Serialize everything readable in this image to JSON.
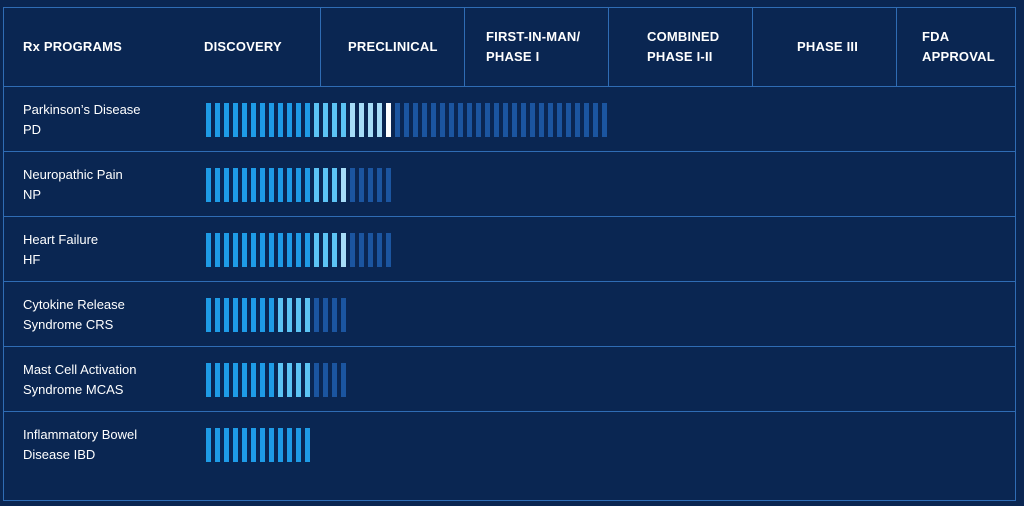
{
  "header": {
    "columns": [
      "Rx PROGRAMS",
      "DISCOVERY",
      "PRECLINICAL",
      "FIRST-IN-MAN/\nPHASE I",
      "COMBINED\nPHASE I-II",
      "PHASE III",
      "FDA\nAPPROVAL"
    ]
  },
  "chart_data": {
    "type": "bar",
    "orientation": "horizontal",
    "title": "",
    "categories_axis": [
      "DISCOVERY",
      "PRECLINICAL",
      "FIRST-IN-MAN/PHASE I",
      "COMBINED PHASE I-II",
      "PHASE III",
      "FDA APPROVAL"
    ],
    "programs": [
      {
        "line1": "Parkinson’s Disease",
        "line2": "PD",
        "filled_segments": 21,
        "faded_segments": 24
      },
      {
        "line1": "Neuropathic Pain",
        "line2": "NP",
        "filled_segments": 16,
        "faded_segments": 5
      },
      {
        "line1": "Heart Failure",
        "line2": "HF",
        "filled_segments": 16,
        "faded_segments": 5
      },
      {
        "line1": "Cytokine Release",
        "line2": "Syndrome CRS",
        "filled_segments": 12,
        "faded_segments": 4
      },
      {
        "line1": "Mast Cell Activation",
        "line2": "Syndrome MCAS",
        "filled_segments": 12,
        "faded_segments": 4
      },
      {
        "line1": "Inflammatory Bowel",
        "line2": "Disease IBD",
        "filled_segments": 12,
        "faded_segments": 0
      }
    ]
  },
  "colors": {
    "background": "#0a2652",
    "grid": "#2f6cb4",
    "bar_base": "#1e9be6",
    "bar_light": "#5cc4f5",
    "bar_lighter": "#a6dcf7",
    "bar_tip": "#ffffff",
    "bar_faded": "#1b55a0"
  }
}
